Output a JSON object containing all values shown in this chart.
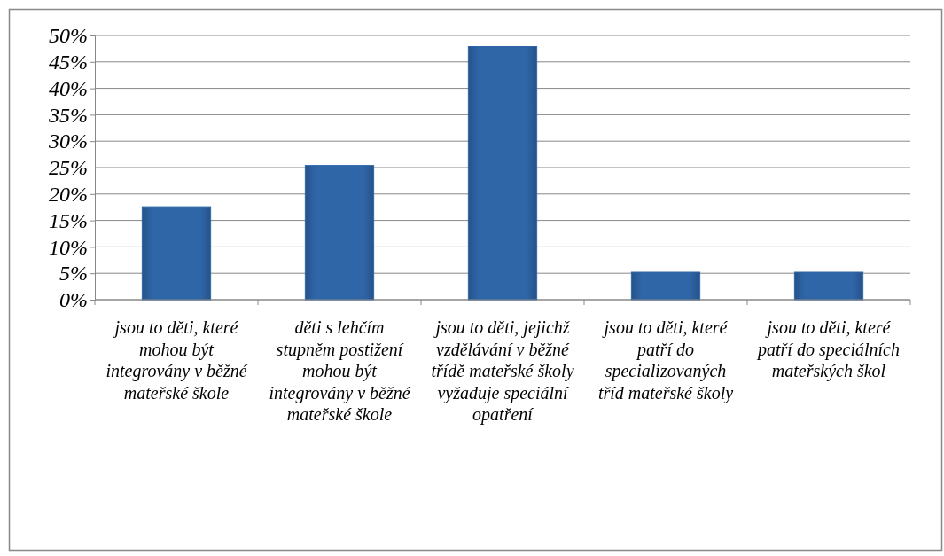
{
  "chart_data": {
    "type": "bar",
    "categories": [
      "jsou to děti, které mohou být integrovány v běžné mateřské škole",
      "děti s lehčím stupněm postižení mohou být integrovány v běžné mateřské škole",
      "jsou to děti, jejichž vzdělávání v běžné třídě mateřské školy vyžaduje speciální opatření",
      "jsou to děti, které patří do specializovaných tříd mateřské školy",
      "jsou to děti, které patří do speciálních mateřských škol"
    ],
    "values": [
      17.6,
      25.4,
      47.9,
      5.2,
      5.2
    ],
    "color": "#2f66a8",
    "ylim": [
      0,
      50
    ],
    "yticks": [
      {
        "value": 0,
        "label": "0%"
      },
      {
        "value": 5,
        "label": "5%"
      },
      {
        "value": 10,
        "label": "10%"
      },
      {
        "value": 15,
        "label": "15%"
      },
      {
        "value": 20,
        "label": "20%"
      },
      {
        "value": 25,
        "label": "25%"
      },
      {
        "value": 30,
        "label": "30%"
      },
      {
        "value": 35,
        "label": "35%"
      },
      {
        "value": 40,
        "label": "40%"
      },
      {
        "value": 45,
        "label": "45%"
      },
      {
        "value": 50,
        "label": "50%"
      }
    ],
    "grid": "y"
  }
}
